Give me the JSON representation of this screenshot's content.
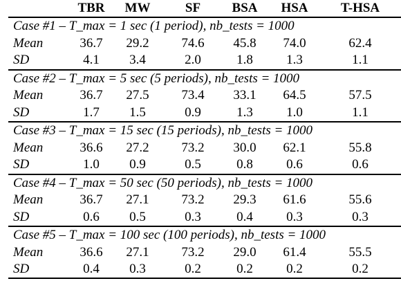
{
  "chart_data": {
    "type": "table",
    "columns": [
      "TBR",
      "MW",
      "SF",
      "BSA",
      "HSA",
      "T-HSA"
    ],
    "row_labels": [
      "Mean",
      "SD"
    ],
    "cases": [
      {
        "title": "Case #1 – T_max = 1 sec (1 period), nb_tests = 1000",
        "mean": [
          "36.7",
          "29.2",
          "74.6",
          "45.8",
          "74.0",
          "62.4"
        ],
        "sd": [
          "4.1",
          "3.4",
          "2.0",
          "1.8",
          "1.3",
          "1.1"
        ]
      },
      {
        "title": "Case #2 – T_max = 5 sec (5 periods), nb_tests = 1000",
        "mean": [
          "36.7",
          "27.5",
          "73.4",
          "33.1",
          "64.5",
          "57.5"
        ],
        "sd": [
          "1.7",
          "1.5",
          "0.9",
          "1.3",
          "1.0",
          "1.1"
        ]
      },
      {
        "title": "Case #3 – T_max = 15 sec (15 periods), nb_tests = 1000",
        "mean": [
          "36.6",
          "27.2",
          "73.2",
          "30.0",
          "62.1",
          "55.8"
        ],
        "sd": [
          "1.0",
          "0.9",
          "0.5",
          "0.8",
          "0.6",
          "0.6"
        ]
      },
      {
        "title": "Case #4 – T_max = 50 sec (50 periods), nb_tests = 1000",
        "mean": [
          "36.7",
          "27.1",
          "73.2",
          "29.3",
          "61.6",
          "55.6"
        ],
        "sd": [
          "0.6",
          "0.5",
          "0.3",
          "0.4",
          "0.3",
          "0.3"
        ]
      },
      {
        "title": "Case #5 – T_max = 100 sec (100 periods), nb_tests = 1000",
        "mean": [
          "36.6",
          "27.1",
          "73.2",
          "29.0",
          "61.4",
          "55.5"
        ],
        "sd": [
          "0.4",
          "0.3",
          "0.2",
          "0.2",
          "0.2",
          "0.2"
        ]
      }
    ]
  }
}
